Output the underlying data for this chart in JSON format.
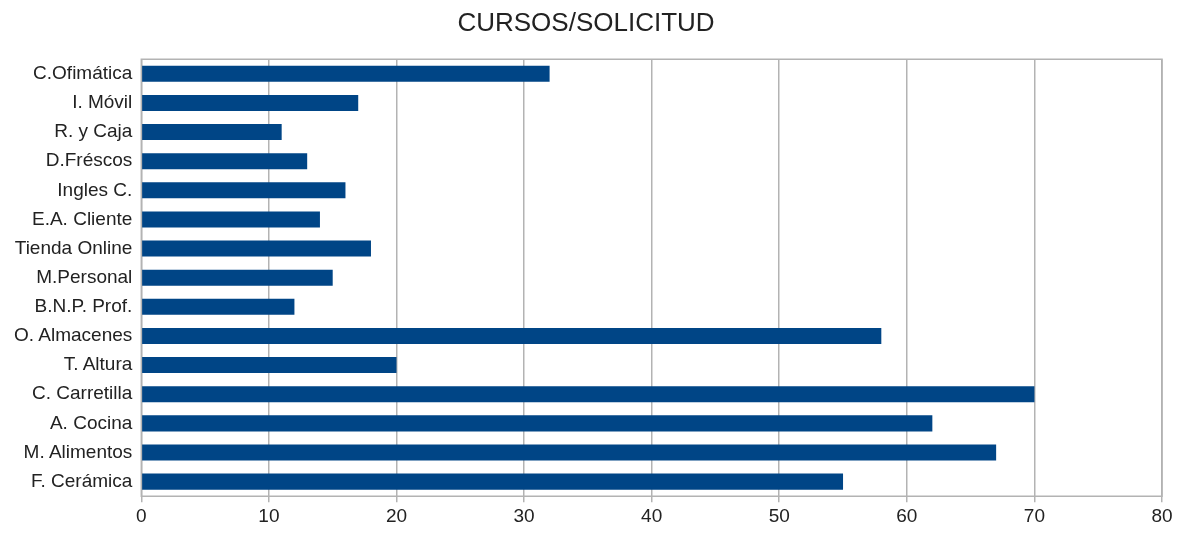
{
  "chart_data": {
    "type": "bar",
    "orientation": "horizontal",
    "title": "CURSOS/SOLICITUD",
    "categories": [
      "C.Ofimática",
      "I. Móvil",
      "R. y Caja",
      "D.Fréscos",
      "Ingles C.",
      "E.A. Cliente",
      "Tienda Online",
      "M.Personal",
      "B.N.P. Prof.",
      "O. Almacenes",
      "T. Altura",
      "C. Carretilla",
      "A. Cocina",
      "M. Alimentos",
      "F. Cerámica"
    ],
    "values": [
      32,
      17,
      11,
      13,
      16,
      14,
      18,
      15,
      12,
      58,
      20,
      70,
      62,
      67,
      55
    ],
    "color": "#004586",
    "xlim": [
      0,
      80
    ],
    "xticks": [
      0,
      10,
      20,
      30,
      40,
      50,
      60,
      70,
      80
    ],
    "grid": "x",
    "legend": false
  }
}
